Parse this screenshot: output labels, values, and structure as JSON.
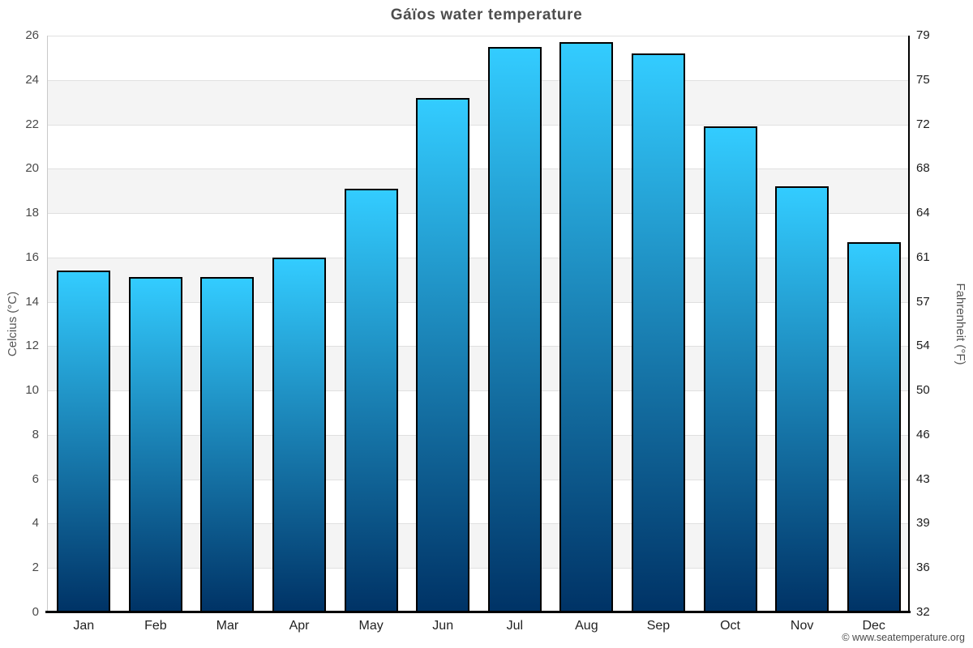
{
  "chart_data": {
    "type": "bar",
    "title": "Gáïos water temperature",
    "categories": [
      "Jan",
      "Feb",
      "Mar",
      "Apr",
      "May",
      "Jun",
      "Jul",
      "Aug",
      "Sep",
      "Oct",
      "Nov",
      "Dec"
    ],
    "values": [
      15.4,
      15.1,
      15.1,
      16.0,
      19.1,
      23.2,
      25.5,
      25.7,
      25.2,
      21.9,
      19.2,
      16.7
    ],
    "ylabel_left": "Celcius (°C)",
    "ylabel_right": "Fahrenheit (°F)",
    "xlabel": "",
    "ylim": [
      0,
      26
    ],
    "yticks_celsius": [
      0,
      2,
      4,
      6,
      8,
      10,
      12,
      14,
      16,
      18,
      20,
      22,
      24,
      26
    ],
    "yticks_fahrenheit": [
      "32",
      "36",
      "39",
      "43",
      "46",
      "50",
      "54",
      "57",
      "61",
      "64",
      "68",
      "72",
      "75",
      "79"
    ],
    "grid": true,
    "legend": "none",
    "band_pattern": "alternating 2-degree horizontal bands, gray between 2-4, 6-8, 10-12, 14-16, 18-20, 22-24",
    "colors": {
      "bar_gradient_top": "#33ccff",
      "bar_gradient_bottom": "#003366",
      "bar_border": "#000000",
      "band_fill": "#f4f4f4",
      "gridline": "#e0e0e0",
      "axis_left_line": "#c9c9c9",
      "axis_right_line": "#000000",
      "axis_bottom_line": "#000000",
      "title_color": "#4d4d4d"
    }
  },
  "footer": {
    "copyright": "© www.seatemperature.org"
  }
}
